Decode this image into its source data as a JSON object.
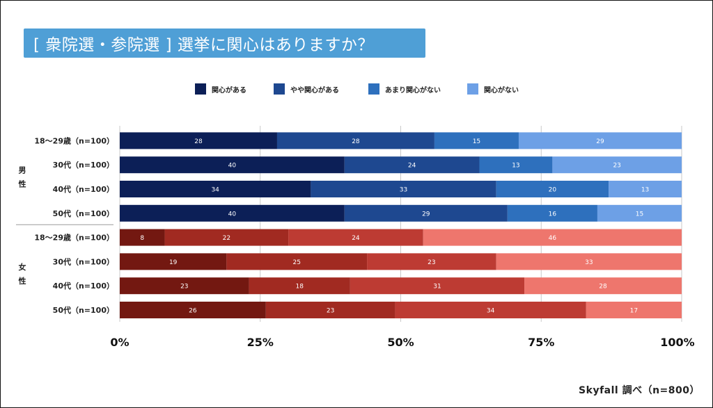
{
  "title": "[ 衆院選・参院選 ] 選挙に関心はありますか？",
  "source": "Skyfall 調べ（n=800）",
  "colors": {
    "blue": [
      "#0c1f57",
      "#1e4890",
      "#2e70bd",
      "#6da0e6"
    ],
    "red": [
      "#731811",
      "#a12a21",
      "#bd3b33",
      "#ee766d"
    ],
    "grid": "#c9c9c9",
    "title_bg": "#4f9fd6"
  },
  "legend": [
    {
      "label": "関心がある",
      "color": "#0c1f57"
    },
    {
      "label": "やや関心がある",
      "color": "#1e4890"
    },
    {
      "label": "あまり関心がない",
      "color": "#2e70bd"
    },
    {
      "label": "関心がない",
      "color": "#6da0e6"
    }
  ],
  "chart_data": {
    "type": "bar",
    "orientation": "horizontal",
    "stacked": true,
    "percent_stacked": true,
    "xlim": [
      0,
      100
    ],
    "xticks": [
      "0%",
      "25%",
      "50%",
      "75%",
      "100%"
    ],
    "legend_position": "top",
    "groups": [
      {
        "name": "男性",
        "categories": [
          "18〜29歳（n=100）",
          "30代（n=100）",
          "40代（n=100）",
          "50代（n=100）"
        ],
        "values": [
          [
            28,
            28,
            15,
            29
          ],
          [
            40,
            24,
            13,
            23
          ],
          [
            34,
            33,
            20,
            13
          ],
          [
            40,
            29,
            16,
            15
          ]
        ]
      },
      {
        "name": "女性",
        "categories": [
          "18〜29歳（n=100）",
          "30代（n=100）",
          "40代（n=100）",
          "50代（n=100）"
        ],
        "values": [
          [
            8,
            22,
            24,
            46
          ],
          [
            19,
            25,
            23,
            33
          ],
          [
            23,
            18,
            31,
            28
          ],
          [
            26,
            23,
            34,
            17
          ]
        ]
      }
    ],
    "series": [
      {
        "name": "関心がある"
      },
      {
        "name": "やや関心がある"
      },
      {
        "name": "あまり関心がない"
      },
      {
        "name": "関心がない"
      }
    ]
  }
}
